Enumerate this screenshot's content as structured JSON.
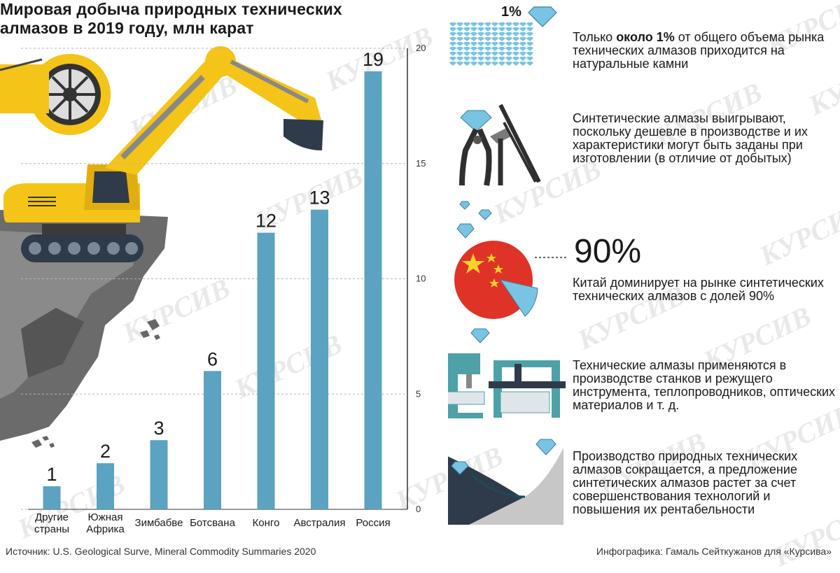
{
  "title": "Мировая добыча природных технических алмазов в 2019 году, млн карат",
  "chart_data": {
    "type": "bar",
    "title": "Мировая добыча природных технических алмазов в 2019 году, млн карат",
    "categories": [
      "Другие страны",
      "Южная Африка",
      "Зимбабве",
      "Ботсвана",
      "Конго",
      "Австралия",
      "Россия"
    ],
    "category_lines": [
      [
        "Другие",
        "страны"
      ],
      [
        "Южная",
        "Африка"
      ],
      [
        "Зимбабве"
      ],
      [
        "Ботсвана"
      ],
      [
        "Конго"
      ],
      [
        "Австралия"
      ],
      [
        "Россия"
      ]
    ],
    "values": [
      1,
      2,
      3,
      6,
      12,
      13,
      19
    ],
    "value_labels": [
      "1",
      "2",
      "3",
      "6",
      "12",
      "13",
      "19"
    ],
    "ylim": [
      0,
      20
    ],
    "yticks": [
      0,
      5,
      10,
      15,
      20
    ],
    "ytick_labels": [
      "0",
      "5",
      "10",
      "15",
      "20"
    ],
    "grid": true,
    "bar_color": "#5ba3c0"
  },
  "info": {
    "pct1": "1%",
    "text1_pre": "Только ",
    "text1_bold": "около 1%",
    "text1_post": " от общего объема рынка технических алмазов приходится на натуральные камни",
    "text2": "Синтетические алмазы выигрывают, поскольку дешевле в производстве и их характеристики могут быть заданы при изготовлении (в отличие от добытых)",
    "pct90": "90%",
    "text3": "Китай доминирует на рынке синтетических технических алмазов с долей 90%",
    "text4": "Технические алмазы применяются в производстве станков и режущего инструмента, теплопроводников, оптических материалов и т. д.",
    "text5": "Производство природных технических алмазов сокращается, а предложение синтетических алмазов растет за счет совершенствования технологий и повышения их рентабельности"
  },
  "source": "Источник: U.S. Geological Surve, Mineral Commodity Summaries 2020",
  "credit": "Инфографика: Гамаль Сейткужанов для «Курсива»",
  "watermark": "КУРСИВ",
  "colors": {
    "bar": "#5ba3c0",
    "diamond": "#79c4e3",
    "china_red": "#e03327",
    "china_star": "#f7d229",
    "excavator": "#f4c418",
    "rock": "#6e6e6e",
    "teal": "#4fa1a8"
  }
}
